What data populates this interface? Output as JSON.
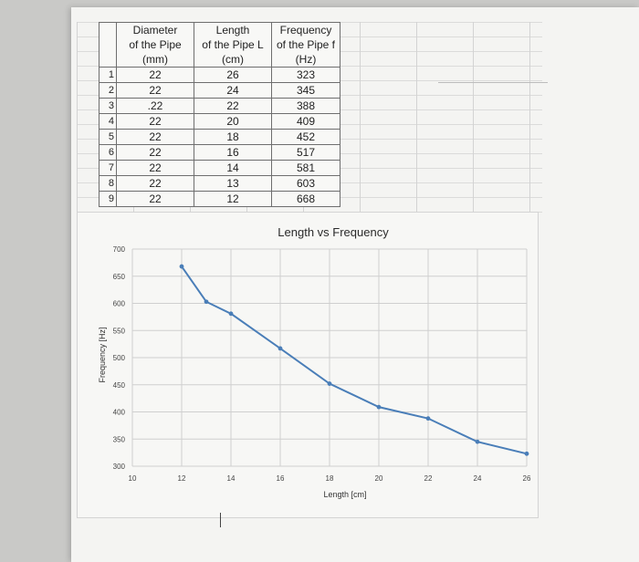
{
  "table": {
    "headers": {
      "diameter": [
        "Diameter",
        "of the Pipe",
        "(mm)"
      ],
      "length": [
        "Length",
        "of the Pipe L",
        "(cm)"
      ],
      "frequency": [
        "Frequency",
        "of the Pipe f",
        "(Hz)"
      ]
    },
    "rows": [
      {
        "index": "1",
        "diameter": "22",
        "length": "26",
        "frequency": "323"
      },
      {
        "index": "2",
        "diameter": "22",
        "length": "24",
        "frequency": "345"
      },
      {
        "index": "3",
        "diameter": ".22",
        "length": "22",
        "frequency": "388"
      },
      {
        "index": "4",
        "diameter": "22",
        "length": "20",
        "frequency": "409"
      },
      {
        "index": "5",
        "diameter": "22",
        "length": "18",
        "frequency": "452"
      },
      {
        "index": "6",
        "diameter": "22",
        "length": "16",
        "frequency": "517"
      },
      {
        "index": "7",
        "diameter": "22",
        "length": "14",
        "frequency": "581"
      },
      {
        "index": "8",
        "diameter": "22",
        "length": "13",
        "frequency": "603"
      },
      {
        "index": "9",
        "diameter": "22",
        "length": "12",
        "frequency": "668"
      }
    ]
  },
  "chart_data": {
    "type": "line",
    "title": "Length vs Frequency",
    "xlabel": "Length [cm]",
    "ylabel": "Frequency [Hz]",
    "xlim": [
      10,
      26
    ],
    "ylim": [
      300,
      700
    ],
    "xticks": [
      10,
      12,
      14,
      16,
      18,
      20,
      22,
      24,
      26
    ],
    "yticks": [
      300,
      350,
      400,
      450,
      500,
      550,
      600,
      650,
      700
    ],
    "grid": true,
    "legend": "none",
    "line_color": "#4a7eb8",
    "series": [
      {
        "x": [
          12,
          13,
          14,
          16,
          18,
          20,
          22,
          24,
          26
        ],
        "y": [
          668,
          603,
          581,
          517,
          452,
          409,
          388,
          345,
          323
        ]
      }
    ]
  }
}
